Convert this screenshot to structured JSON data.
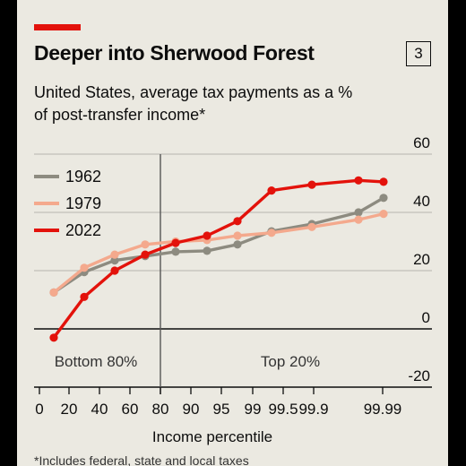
{
  "header": {
    "title": "Deeper into Sherwood Forest",
    "badge": "3",
    "subtitle": "United States, average tax payments as a % of post-transfer income*",
    "footnote": "*Includes federal, state and local taxes"
  },
  "colors": {
    "accent": "#e3120b",
    "s1962": "#8d8b80",
    "s1979": "#f4a98d",
    "s2022": "#e3120b",
    "background": "#ebe9e1"
  },
  "chart_data": {
    "type": "line",
    "xlabel": "Income percentile",
    "x_ticks": [
      "0",
      "20",
      "40",
      "60",
      "80",
      "90",
      "95",
      "99",
      "99.5",
      "99.9",
      "99.99"
    ],
    "y_ticks": [
      60,
      40,
      20,
      0,
      -20
    ],
    "ylim": [
      -20,
      60
    ],
    "regions": [
      "Bottom 80%",
      "Top 20%"
    ],
    "legend_position": "top-left",
    "x_points": [
      "10",
      "30",
      "50",
      "70",
      "85",
      "92.5",
      "97",
      "99.25",
      "99.75",
      "99.95",
      "99.99"
    ],
    "series": [
      {
        "name": "1962",
        "values": [
          12.5,
          19.5,
          23.5,
          25,
          26.5,
          26.8,
          29,
          33.5,
          36,
          40,
          45
        ]
      },
      {
        "name": "1979",
        "values": [
          12.5,
          21,
          25.5,
          29,
          30,
          30.5,
          32,
          33,
          35,
          37.5,
          39.5
        ]
      },
      {
        "name": "2022",
        "values": [
          -3,
          11,
          20,
          25.5,
          29.5,
          32,
          37,
          47.5,
          49.5,
          51,
          50.5
        ]
      }
    ]
  }
}
